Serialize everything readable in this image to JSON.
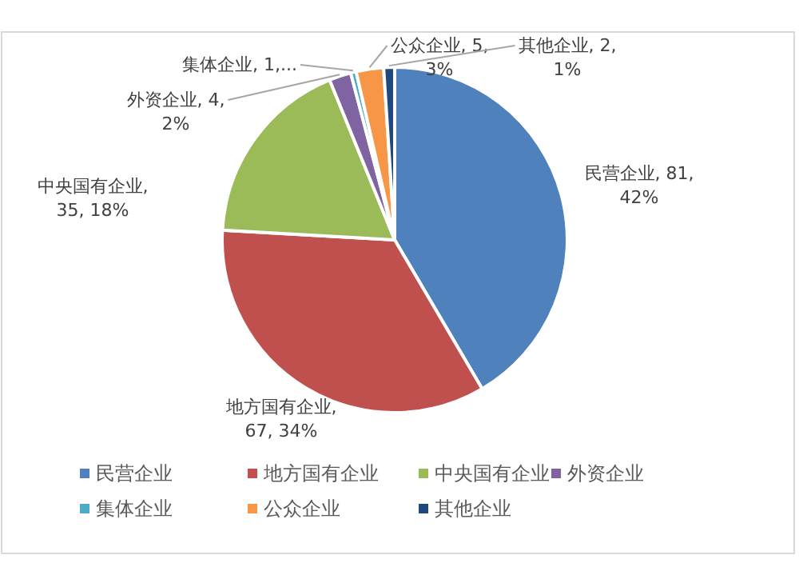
{
  "chart_data": {
    "type": "pie",
    "categories": [
      "民营企业",
      "地方国有企业",
      "中央国有企业",
      "外资企业",
      "集体企业",
      "公众企业",
      "其他企业"
    ],
    "values": [
      81,
      67,
      35,
      4,
      1,
      5,
      2
    ],
    "value_labels": [
      "民营企业, 81,\n42%",
      "地方国有企业,\n67, 34%",
      "中央国有企业,\n35, 18%",
      "外资企业, 4,\n2%",
      "集体企业, 1,...",
      "公众企业, 5,\n3%",
      "其他企业, 2,\n1%"
    ],
    "colors": [
      "#4f81bd",
      "#c0504d",
      "#9bbb59",
      "#8064a2",
      "#4bacc6",
      "#f79646",
      "#1f497d"
    ],
    "legend": "bottom"
  }
}
